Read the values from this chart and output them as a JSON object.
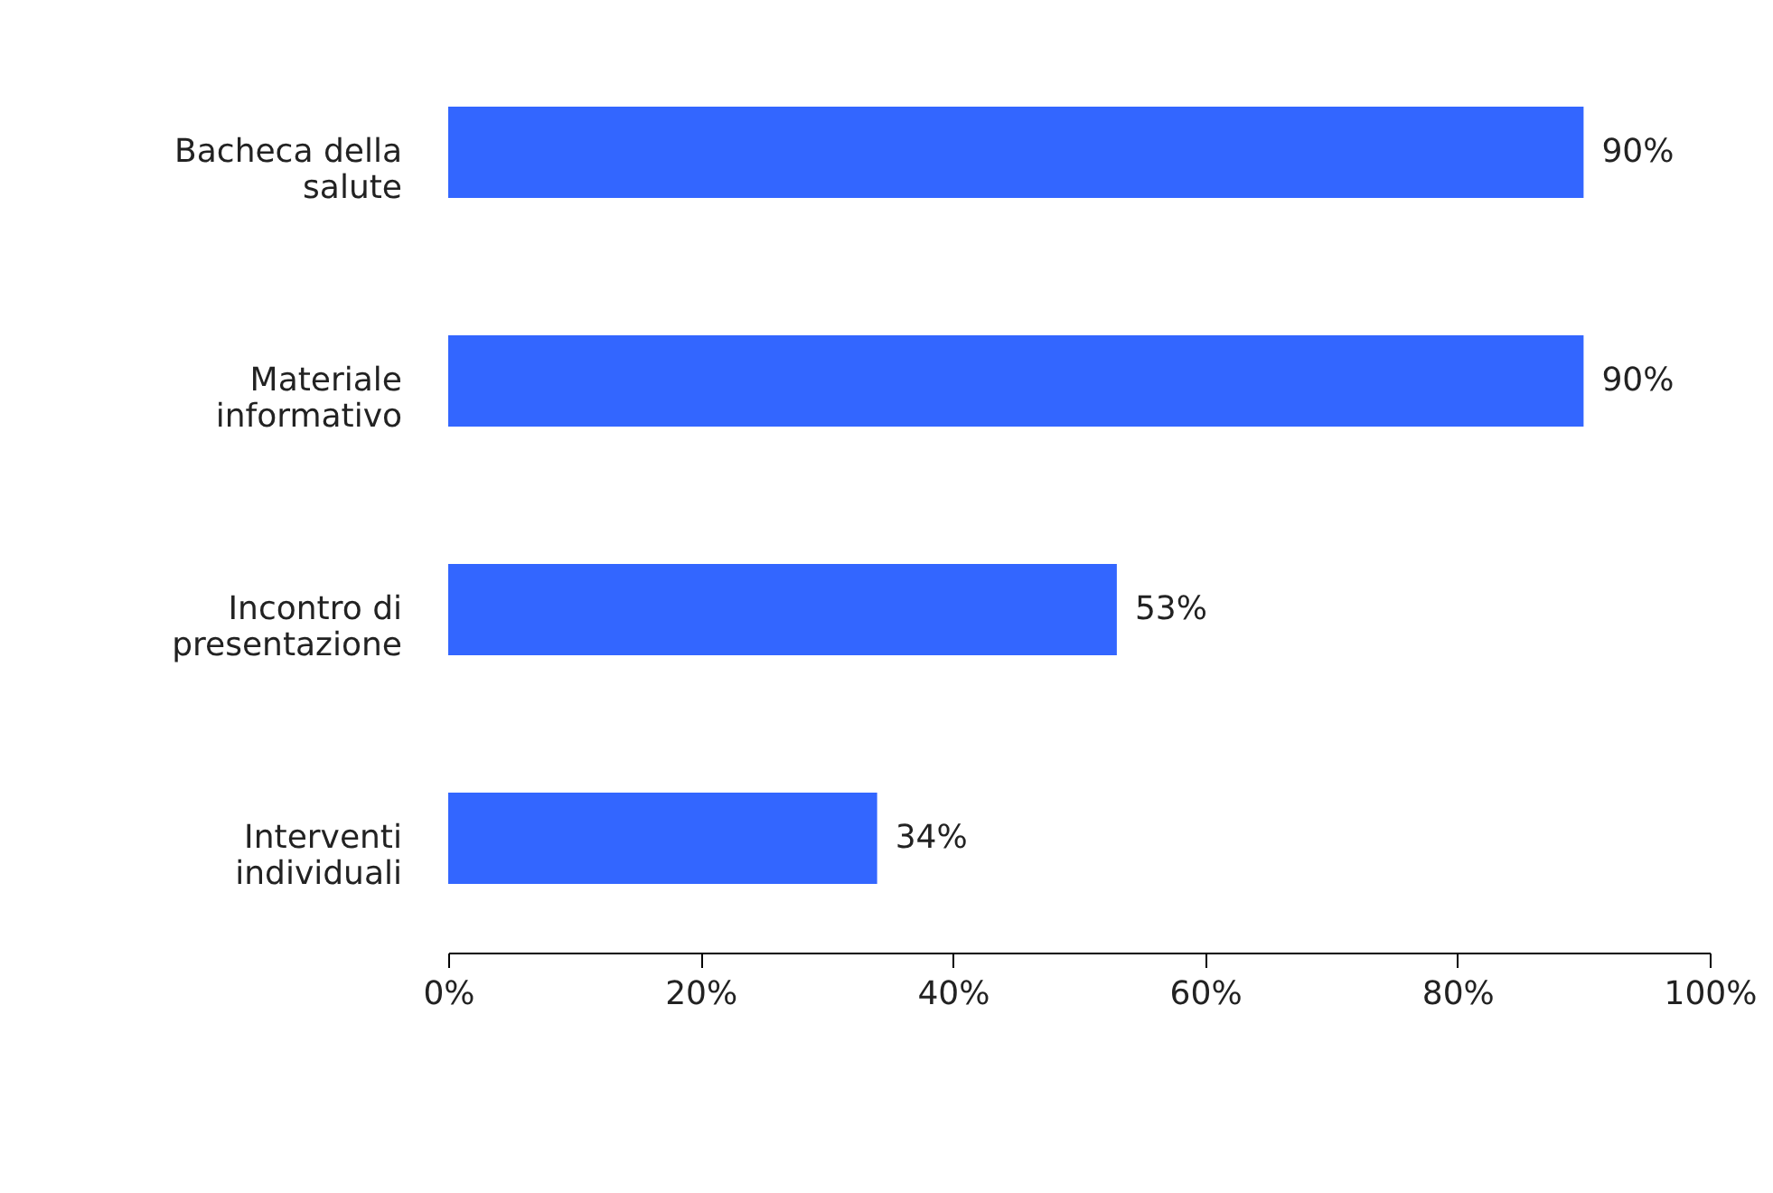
{
  "chart_data": {
    "type": "bar",
    "orientation": "horizontal",
    "categories": [
      "Bacheca della salute",
      "Materiale informativo",
      "Incontro di presentazione",
      "Interventi individuali"
    ],
    "values": [
      90,
      90,
      53,
      34
    ],
    "color": "#3366ff",
    "value_labels": [
      "90%",
      "90%",
      "53%",
      "34%"
    ],
    "xlim": [
      0,
      100
    ],
    "xticks": [
      {
        "value": 0,
        "label": "0%"
      },
      {
        "value": 20,
        "label": "20%"
      },
      {
        "value": 40,
        "label": "40%"
      },
      {
        "value": 60,
        "label": "60%"
      },
      {
        "value": 80,
        "label": "80%"
      },
      {
        "value": 100,
        "label": "100%"
      }
    ],
    "grid": false
  }
}
